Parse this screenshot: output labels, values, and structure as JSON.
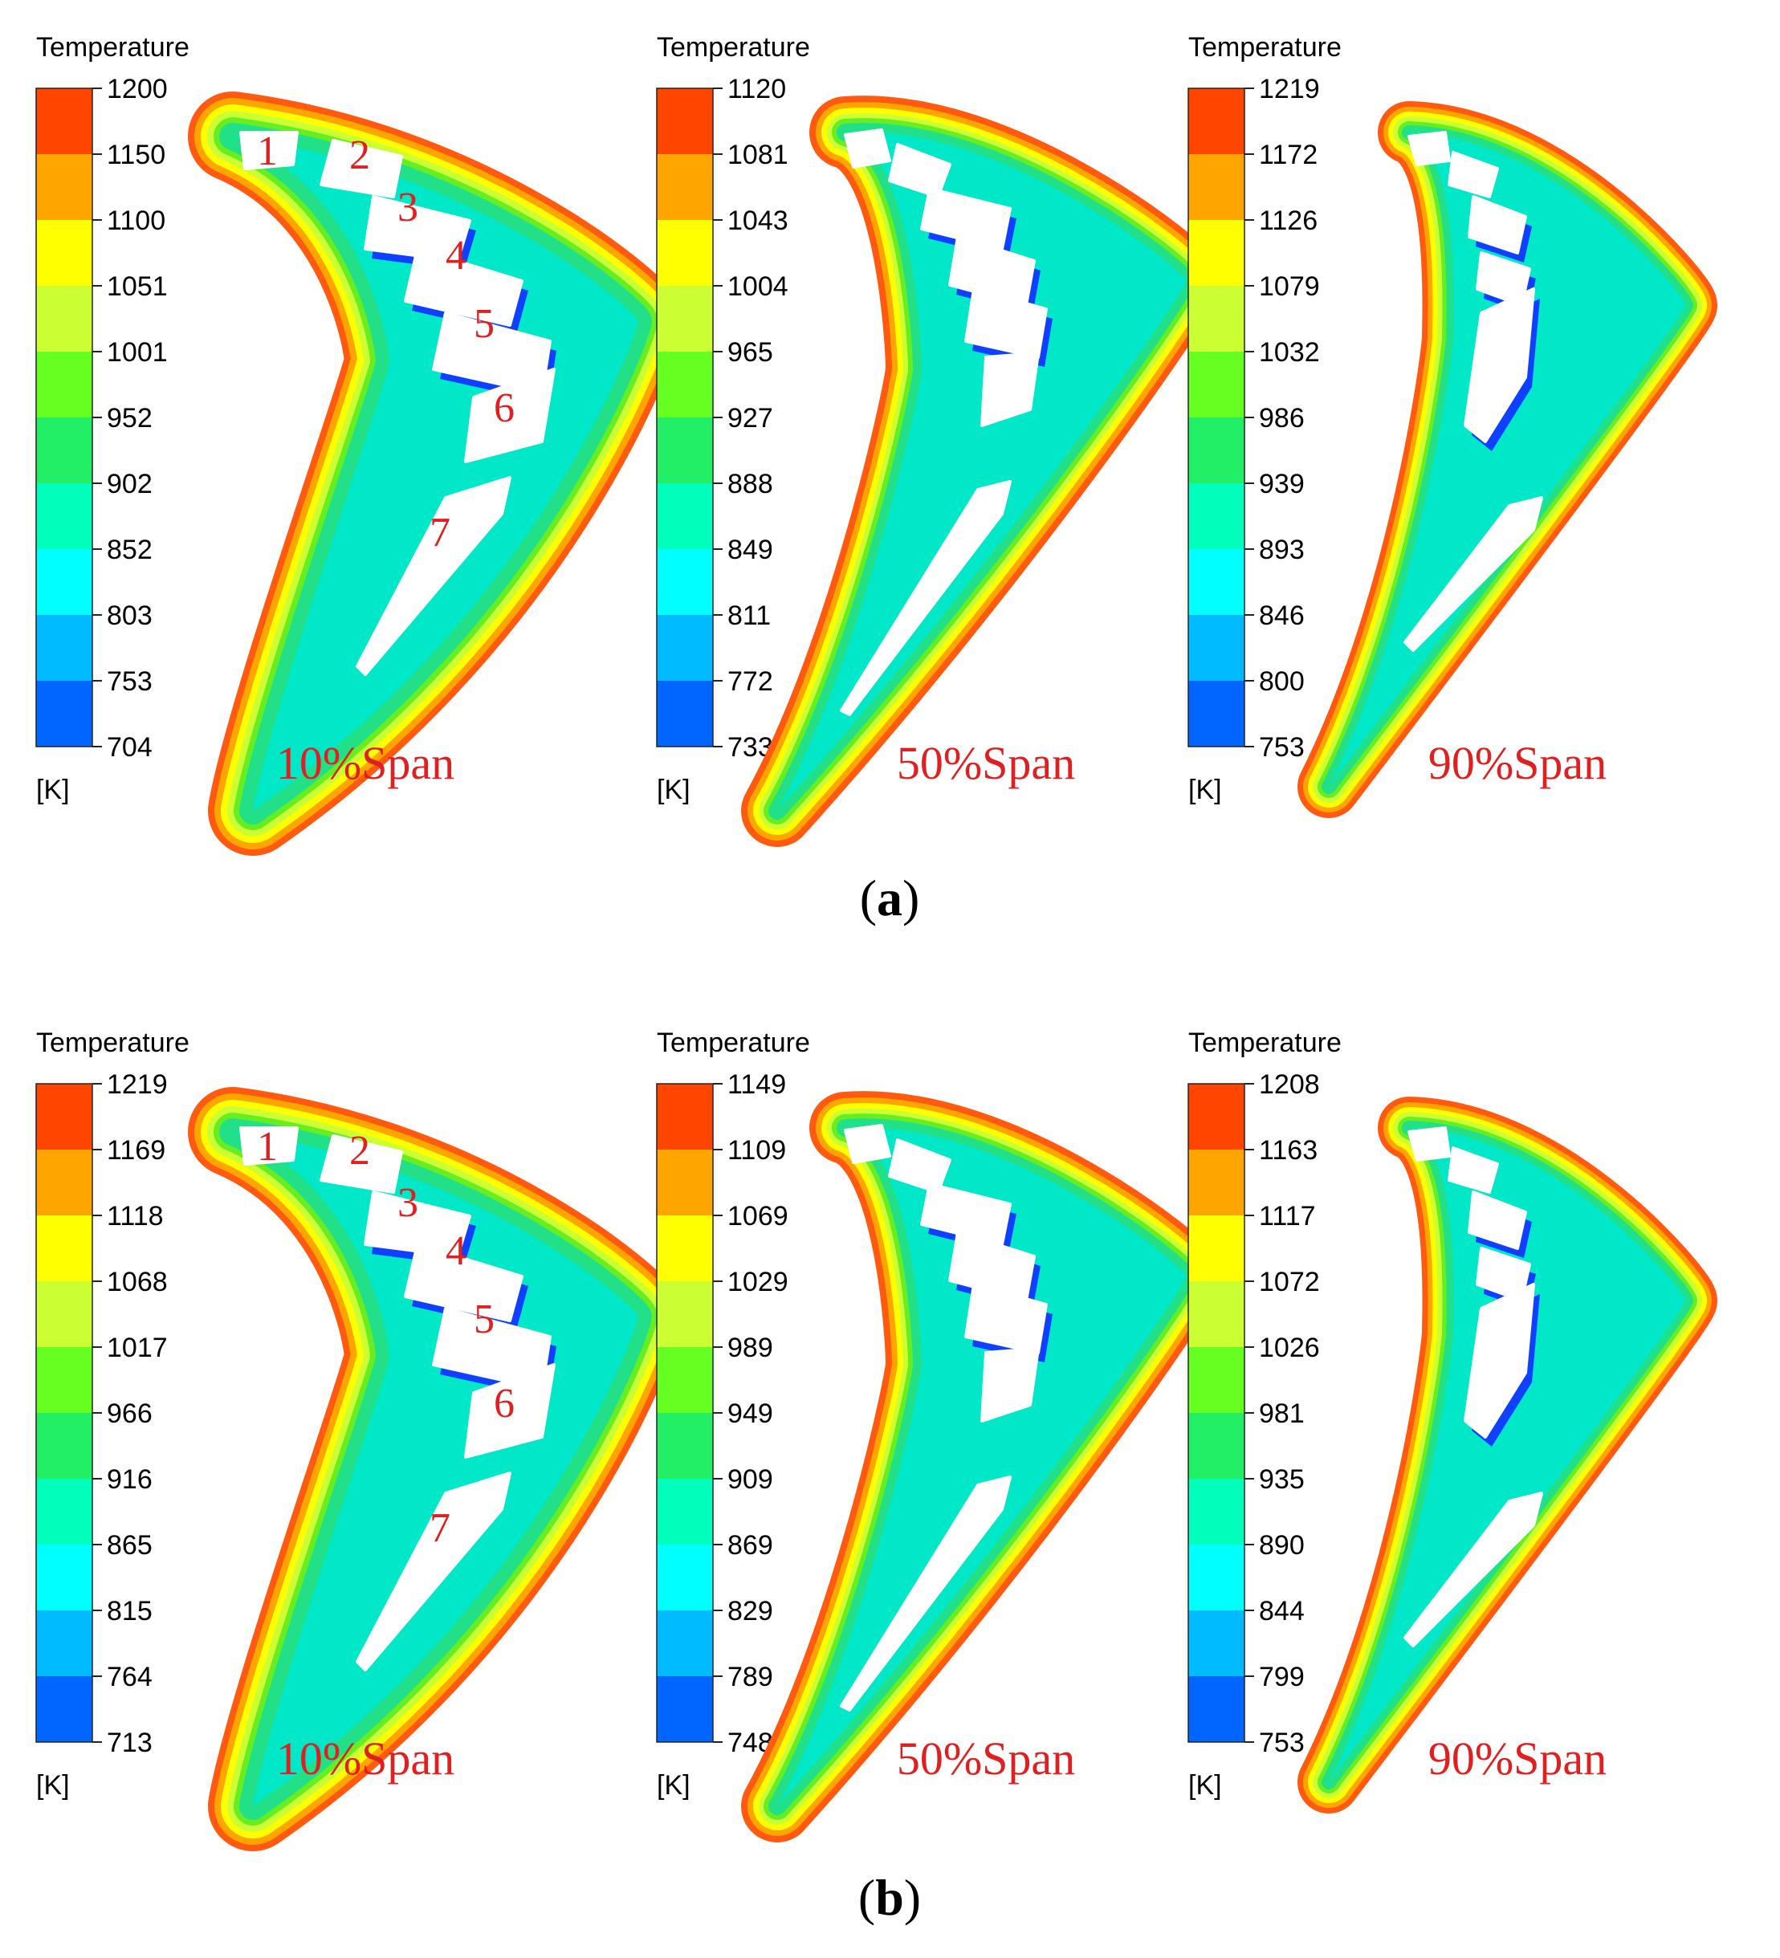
{
  "figure": {
    "rows": [
      {
        "caption": "a",
        "panels": [
          {
            "title": "Temperature",
            "unit": "[K]",
            "span_label": "10%Span",
            "ticks": [
              "1200",
              "1150",
              "1100",
              "1051",
              "1001",
              "952",
              "902",
              "852",
              "803",
              "753",
              "704"
            ],
            "shape": "thick",
            "channel_labels": [
              "1",
              "2",
              "3",
              "4",
              "5",
              "6",
              "7"
            ]
          },
          {
            "title": "Temperature",
            "unit": "[K]",
            "span_label": "50%Span",
            "ticks": [
              "1120",
              "1081",
              "1043",
              "1004",
              "965",
              "927",
              "888",
              "849",
              "811",
              "772",
              "733"
            ],
            "shape": "mid"
          },
          {
            "title": "Temperature",
            "unit": "[K]",
            "span_label": "90%Span",
            "ticks": [
              "1219",
              "1172",
              "1126",
              "1079",
              "1032",
              "986",
              "939",
              "893",
              "846",
              "800",
              "753"
            ],
            "shape": "thin"
          }
        ]
      },
      {
        "caption": "b",
        "panels": [
          {
            "title": "Temperature",
            "unit": "[K]",
            "span_label": "10%Span",
            "ticks": [
              "1219",
              "1169",
              "1118",
              "1068",
              "1017",
              "966",
              "916",
              "865",
              "815",
              "764",
              "713"
            ],
            "shape": "thick",
            "channel_labels": [
              "1",
              "2",
              "3",
              "4",
              "5",
              "6",
              "7"
            ]
          },
          {
            "title": "Temperature",
            "unit": "[K]",
            "span_label": "50%Span",
            "ticks": [
              "1149",
              "1109",
              "1069",
              "1029",
              "989",
              "949",
              "909",
              "869",
              "829",
              "789",
              "748"
            ],
            "shape": "mid"
          },
          {
            "title": "Temperature",
            "unit": "[K]",
            "span_label": "90%Span",
            "ticks": [
              "1208",
              "1163",
              "1117",
              "1072",
              "1026",
              "981",
              "935",
              "890",
              "844",
              "799",
              "753"
            ],
            "shape": "thin"
          }
        ]
      }
    ],
    "colormap": [
      "#ff4500",
      "#ffa500",
      "#ffff00",
      "#ccff33",
      "#66ff22",
      "#22ee66",
      "#00ffbb",
      "#00ffff",
      "#00bbff",
      "#0066ff",
      "#0033ff"
    ],
    "text_color": "#e02020"
  }
}
